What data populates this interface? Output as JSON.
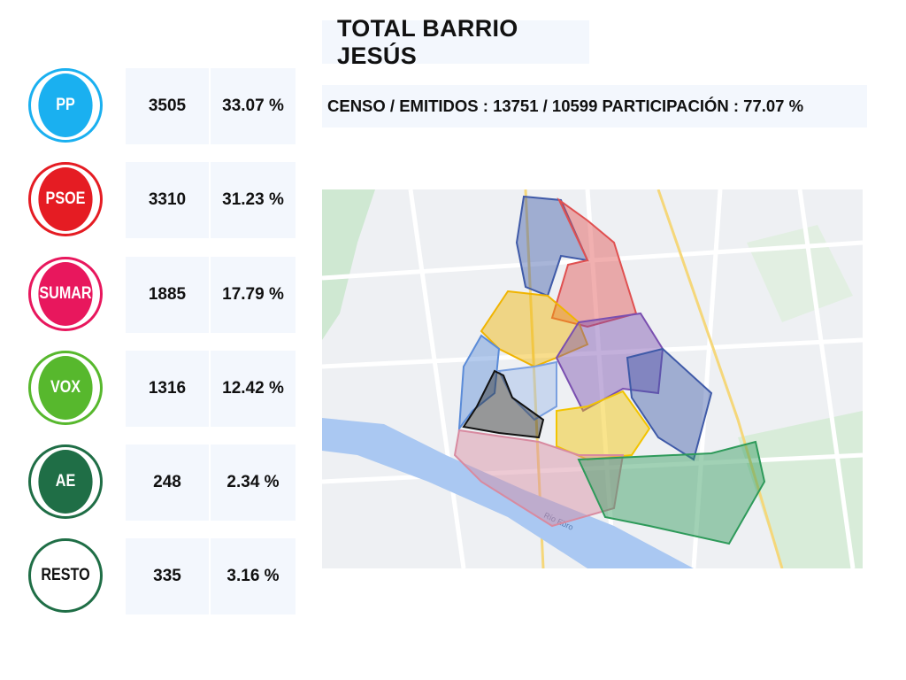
{
  "title": "TOTAL BARRIO JESÚS",
  "summary": "CENSO / EMITIDOS : 13751 / 10599  PARTICIPACIÓN : 77.07 %",
  "parties": [
    {
      "name": "PP",
      "votes": "3505",
      "percent": "33.07 %",
      "color": "#1ab0f0",
      "text_color": "#ffffff"
    },
    {
      "name": "PSOE",
      "votes": "3310",
      "percent": "31.23 %",
      "color": "#e51c23",
      "text_color": "#ffffff"
    },
    {
      "name": "SUMAR",
      "votes": "1885",
      "percent": "17.79 %",
      "color": "#e8175d",
      "text_color": "#ffffff"
    },
    {
      "name": "VOX",
      "votes": "1316",
      "percent": "12.42 %",
      "color": "#57b82d",
      "text_color": "#ffffff"
    },
    {
      "name": "AE",
      "votes": "248",
      "percent": "2.34 %",
      "color": "#1f6e46",
      "text_color": "#ffffff"
    },
    {
      "name": "RESTO",
      "votes": "335",
      "percent": "3.16 %",
      "color": "#ffffff",
      "text_color": "#111111",
      "ring_color": "#1f6e46"
    }
  ],
  "map": {
    "river_label": "Río Ebro",
    "section_colors": [
      "#3f5aa8",
      "#e05050",
      "#f0b400",
      "#7a4fb0",
      "#5a8bd8",
      "#2a2a2a",
      "#d88aa0",
      "#2e9a5a",
      "#f2c400"
    ]
  }
}
